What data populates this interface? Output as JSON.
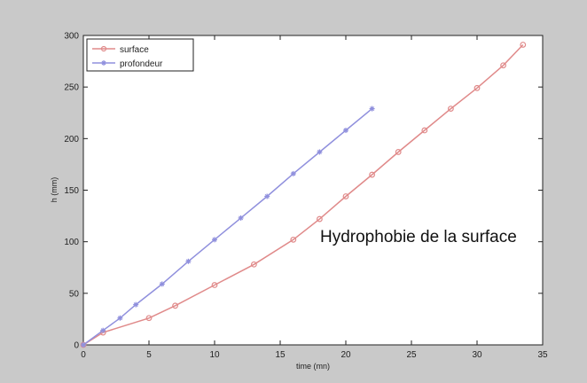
{
  "chart_data": {
    "type": "line",
    "xlabel": "time (mn)",
    "ylabel": "h (mm)",
    "xlim": [
      0,
      35
    ],
    "ylim": [
      0,
      300
    ],
    "xticks": [
      0,
      5,
      10,
      15,
      20,
      25,
      30,
      35
    ],
    "yticks": [
      0,
      50,
      100,
      150,
      200,
      250,
      300
    ],
    "grid": false,
    "legend": "top-left",
    "annotation": "Hydrophobie de la surface",
    "series": [
      {
        "name": "surface",
        "color": "#e08a8a",
        "marker": "circle",
        "x": [
          0,
          1.5,
          5,
          7,
          10,
          13,
          16,
          18,
          20,
          22,
          24,
          26,
          28,
          30,
          32,
          33.5
        ],
        "y": [
          0,
          12,
          26,
          38,
          58,
          78,
          102,
          122,
          144,
          165,
          187,
          208,
          229,
          249,
          271,
          291
        ]
      },
      {
        "name": "profondeur",
        "color": "#9090dd",
        "marker": "asterisk",
        "x": [
          0,
          1.5,
          2.8,
          4,
          6,
          8,
          10,
          12,
          14,
          16,
          18,
          20,
          22
        ],
        "y": [
          0,
          14,
          26,
          39,
          59,
          81,
          102,
          123,
          144,
          166,
          187,
          208,
          229
        ]
      }
    ]
  }
}
